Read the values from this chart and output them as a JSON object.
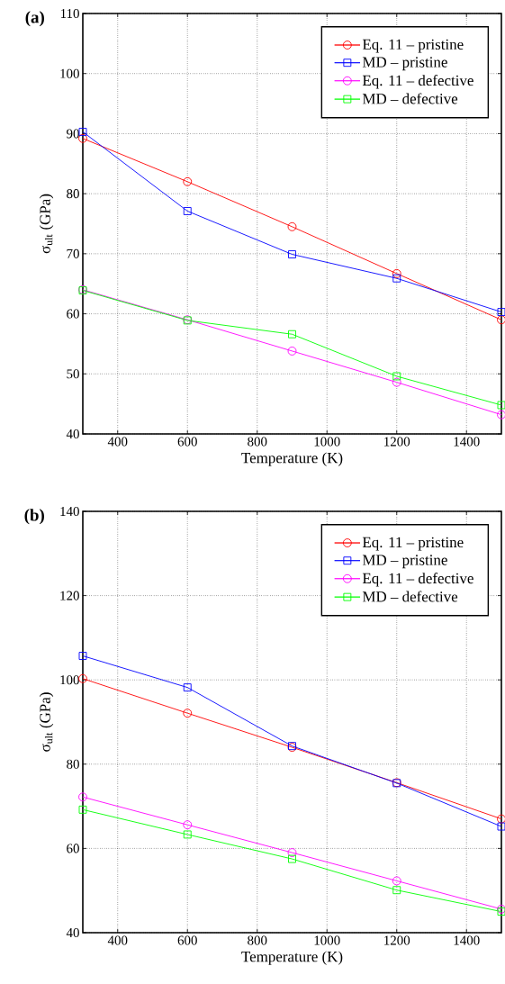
{
  "chart_data": [
    {
      "type": "line",
      "annotations": [
        "(a)"
      ],
      "xlabel": "Temperature (K)",
      "ylabel": "σ$_{ult}$ (GPa)",
      "x": [
        300,
        600,
        900,
        1200,
        1500
      ],
      "xlim": [
        300,
        1500
      ],
      "ylim": [
        40,
        110
      ],
      "xticks": [
        400,
        600,
        800,
        1000,
        1200,
        1400
      ],
      "yticks": [
        40,
        50,
        60,
        70,
        80,
        90,
        100,
        110
      ],
      "grid": true,
      "legend": "top right",
      "line_style": "solid",
      "series": [
        {
          "name": "Eq. 11 – pristine",
          "color": "#ff0000",
          "marker": "circle",
          "values": [
            89.2,
            82,
            74.5,
            66.7,
            59
          ]
        },
        {
          "name": "MD – pristine",
          "color": "#0000ff",
          "marker": "square",
          "values": [
            90.3,
            77.1,
            69.9,
            65.9,
            60.3
          ]
        },
        {
          "name": "Eq. 11 – defective",
          "color": "#ff00ff",
          "marker": "circle",
          "values": [
            64,
            59,
            53.8,
            48.6,
            43.2
          ]
        },
        {
          "name": "MD – defective",
          "color": "#00ff00",
          "marker": "square",
          "values": [
            63.9,
            58.9,
            56.6,
            49.6,
            44.8
          ]
        }
      ]
    },
    {
      "type": "line",
      "annotations": [
        "(b)"
      ],
      "xlabel": "Temperature (K)",
      "ylabel": "σ$_{ult}$ (GPa)",
      "x": [
        300,
        600,
        900,
        1200,
        1500
      ],
      "xlim": [
        300,
        1500
      ],
      "ylim": [
        40,
        140
      ],
      "xticks": [
        400,
        600,
        800,
        1000,
        1200,
        1400
      ],
      "yticks": [
        40,
        60,
        80,
        100,
        120,
        140
      ],
      "grid": true,
      "legend": "top right",
      "line_style": "solid",
      "series": [
        {
          "name": "Eq. 11 – pristine",
          "color": "#ff0000",
          "marker": "circle",
          "values": [
            100.3,
            92.1,
            84,
            75.6,
            67
          ]
        },
        {
          "name": "MD – pristine",
          "color": "#0000ff",
          "marker": "square",
          "values": [
            105.7,
            98.2,
            84.3,
            75.5,
            65.2
          ]
        },
        {
          "name": "Eq. 11 – defective",
          "color": "#ff00ff",
          "marker": "circle",
          "values": [
            72.2,
            65.6,
            59,
            52.3,
            45.6
          ]
        },
        {
          "name": "MD – defective",
          "color": "#00ff00",
          "marker": "square",
          "values": [
            69.2,
            63.3,
            57.5,
            50.1,
            45
          ]
        }
      ]
    }
  ]
}
